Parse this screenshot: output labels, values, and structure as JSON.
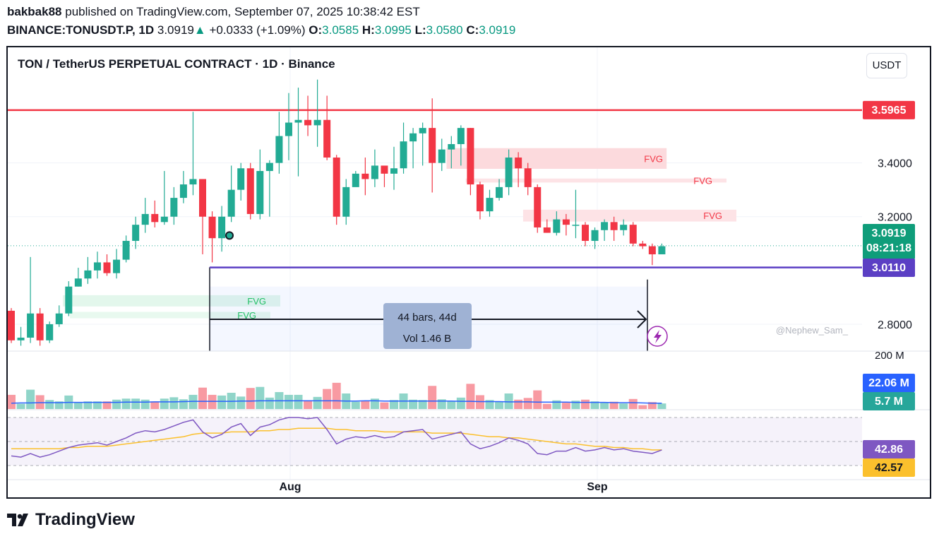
{
  "header": {
    "publisher": "bakbak88",
    "published_text": "published on TradingView.com, September 07, 2025 10:38:42 EST",
    "symbol": "BINANCE:TONUSDT.P, 1D",
    "last": "3.0919",
    "change_arrow": "▲",
    "change": "+0.0333 (+1.09%)",
    "o_label": "O:",
    "o": "3.0585",
    "h_label": "H:",
    "h": "3.0995",
    "l_label": "L:",
    "l": "3.0580",
    "c_label": "C:",
    "c": "3.0919"
  },
  "chart_title": "TON / TetherUS PERPETUAL CONTRACT · 1D · Binance",
  "currency_button": "USDT",
  "brand": "TradingView",
  "colors": {
    "up": "#22ab94",
    "down": "#f23645",
    "resistance": "#f23645",
    "support": "#5b3fc4",
    "volume_ma": "#2962ff",
    "rsi": "#7e57c2",
    "rsi_ma": "#fbc02d"
  },
  "chart_data": {
    "type": "candlestick",
    "symbol": "TONUSDT.P",
    "interval": "1D",
    "price_ticks": [
      "3.4000",
      "3.2000",
      "2.8000"
    ],
    "price_ylim": [
      2.7,
      3.83
    ],
    "volume_tick": "200 M",
    "x_ticks": [
      "Aug",
      "Sep"
    ],
    "candles": [
      [
        2.85,
        2.74,
        2.86,
        2.73
      ],
      [
        2.74,
        2.75,
        2.79,
        2.72
      ],
      [
        2.75,
        2.84,
        3.05,
        2.73
      ],
      [
        2.84,
        2.74,
        2.86,
        2.72
      ],
      [
        2.74,
        2.8,
        2.81,
        2.73
      ],
      [
        2.8,
        2.84,
        2.87,
        2.79
      ],
      [
        2.84,
        2.94,
        2.96,
        2.83
      ],
      [
        2.94,
        2.97,
        3.01,
        2.94
      ],
      [
        2.97,
        3.0,
        3.05,
        2.95
      ],
      [
        3.0,
        3.03,
        3.07,
        2.97
      ],
      [
        3.03,
        2.99,
        3.06,
        2.98
      ],
      [
        2.99,
        3.04,
        3.08,
        2.97
      ],
      [
        3.04,
        3.11,
        3.13,
        3.03
      ],
      [
        3.11,
        3.17,
        3.2,
        3.08
      ],
      [
        3.17,
        3.21,
        3.27,
        3.14
      ],
      [
        3.21,
        3.18,
        3.26,
        3.16
      ],
      [
        3.18,
        3.2,
        3.37,
        3.17
      ],
      [
        3.2,
        3.27,
        3.31,
        3.17
      ],
      [
        3.27,
        3.32,
        3.37,
        3.25
      ],
      [
        3.32,
        3.34,
        3.59,
        3.28
      ],
      [
        3.34,
        3.2,
        3.34,
        3.06
      ],
      [
        3.2,
        3.12,
        3.22,
        3.03
      ],
      [
        3.12,
        3.2,
        3.24,
        3.07
      ],
      [
        3.2,
        3.3,
        3.39,
        3.18
      ],
      [
        3.3,
        3.38,
        3.4,
        3.26
      ],
      [
        3.38,
        3.21,
        3.4,
        3.19
      ],
      [
        3.21,
        3.37,
        3.45,
        3.19
      ],
      [
        3.37,
        3.4,
        3.41,
        3.2
      ],
      [
        3.4,
        3.5,
        3.59,
        3.36
      ],
      [
        3.5,
        3.55,
        3.66,
        3.41
      ],
      [
        3.55,
        3.56,
        3.68,
        3.35
      ],
      [
        3.56,
        3.54,
        3.65,
        3.5
      ],
      [
        3.54,
        3.56,
        3.71,
        3.46
      ],
      [
        3.56,
        3.42,
        3.65,
        3.41
      ],
      [
        3.42,
        3.2,
        3.43,
        3.17
      ],
      [
        3.2,
        3.31,
        3.34,
        3.17
      ],
      [
        3.31,
        3.36,
        3.37,
        3.32
      ],
      [
        3.36,
        3.34,
        3.42,
        3.28
      ],
      [
        3.34,
        3.39,
        3.45,
        3.31
      ],
      [
        3.39,
        3.36,
        3.38,
        3.31
      ],
      [
        3.36,
        3.38,
        3.46,
        3.3
      ],
      [
        3.38,
        3.48,
        3.55,
        3.36
      ],
      [
        3.48,
        3.51,
        3.53,
        3.38
      ],
      [
        3.51,
        3.53,
        3.55,
        3.39
      ],
      [
        3.53,
        3.4,
        3.64,
        3.29
      ],
      [
        3.4,
        3.45,
        3.49,
        3.37
      ],
      [
        3.45,
        3.47,
        3.5,
        3.38
      ],
      [
        3.47,
        3.53,
        3.54,
        3.39
      ],
      [
        3.53,
        3.32,
        3.53,
        3.28
      ],
      [
        3.32,
        3.22,
        3.33,
        3.19
      ],
      [
        3.22,
        3.27,
        3.3,
        3.2
      ],
      [
        3.27,
        3.31,
        3.34,
        3.26
      ],
      [
        3.31,
        3.42,
        3.45,
        3.28
      ],
      [
        3.42,
        3.38,
        3.44,
        3.31
      ],
      [
        3.38,
        3.31,
        3.4,
        3.28
      ],
      [
        3.31,
        3.16,
        3.32,
        3.14
      ],
      [
        3.16,
        3.14,
        3.19,
        3.14
      ],
      [
        3.14,
        3.19,
        3.22,
        3.13
      ],
      [
        3.19,
        3.17,
        3.21,
        3.13
      ],
      [
        3.17,
        3.17,
        3.3,
        3.12
      ],
      [
        3.17,
        3.11,
        3.18,
        3.09
      ],
      [
        3.11,
        3.15,
        3.16,
        3.08
      ],
      [
        3.15,
        3.18,
        3.19,
        3.11
      ],
      [
        3.18,
        3.15,
        3.2,
        3.11
      ],
      [
        3.15,
        3.17,
        3.19,
        3.13
      ],
      [
        3.17,
        3.1,
        3.18,
        3.09
      ],
      [
        3.1,
        3.09,
        3.11,
        3.08
      ],
      [
        3.09,
        3.06,
        3.1,
        3.02
      ],
      [
        3.06,
        3.09,
        3.1,
        3.06
      ]
    ],
    "volume_ma_values": [
      22,
      23,
      23,
      24,
      24,
      24,
      25,
      25,
      25,
      25,
      25,
      25,
      26,
      26,
      26,
      27,
      27,
      27,
      28,
      29,
      29,
      29,
      29,
      29,
      30,
      30,
      31,
      31,
      31,
      31,
      31,
      31,
      31,
      31,
      31,
      30,
      30,
      31,
      31,
      30,
      30,
      30,
      30,
      30,
      30,
      30,
      30,
      29,
      29,
      28,
      28,
      28,
      27,
      27,
      27,
      26,
      26,
      26,
      26,
      25,
      25,
      25,
      25,
      24,
      24,
      24,
      23,
      22,
      22
    ],
    "rsi_values": [
      38,
      37,
      40,
      37,
      39,
      42,
      45,
      47,
      48,
      49,
      47,
      50,
      53,
      57,
      59,
      58,
      60,
      63,
      66,
      68,
      58,
      53,
      56,
      62,
      65,
      55,
      62,
      64,
      68,
      70,
      70,
      69,
      70,
      60,
      48,
      52,
      54,
      53,
      55,
      53,
      54,
      58,
      59,
      60,
      52,
      54,
      56,
      58,
      48,
      44,
      46,
      49,
      53,
      51,
      48,
      40,
      39,
      42,
      42,
      45,
      42,
      43,
      45,
      43,
      44,
      42,
      41,
      40,
      43
    ],
    "rsi_ma_values": [
      44,
      44,
      44,
      44,
      44,
      44,
      45,
      45,
      46,
      46,
      46,
      47,
      48,
      49,
      50,
      51,
      52,
      53,
      54,
      56,
      57,
      57,
      57,
      58,
      58,
      58,
      59,
      59,
      60,
      60,
      61,
      61,
      61,
      61,
      60,
      60,
      59,
      59,
      59,
      58,
      58,
      58,
      58,
      58,
      57,
      57,
      57,
      57,
      56,
      55,
      54,
      54,
      53,
      53,
      52,
      51,
      50,
      49,
      48,
      48,
      47,
      46,
      46,
      45,
      45,
      44,
      44,
      43,
      43
    ],
    "resistance": 3.5965,
    "support": 3.011,
    "last_price": 3.0919,
    "measure": {
      "bars_label": "44 bars, 44d",
      "vol_label": "Vol 1.46 B"
    },
    "annotations": {
      "fvg": "FVG",
      "watermark": "@Nephew_Sam_"
    },
    "labels": {
      "resistance": "3.5965",
      "last_price": "3.0919",
      "countdown": "08:21:18",
      "support": "3.0110",
      "volume_ma": "22.06 M",
      "volume_last": "5.7 M",
      "rsi": "42.86",
      "rsi_ma": "42.57"
    }
  }
}
